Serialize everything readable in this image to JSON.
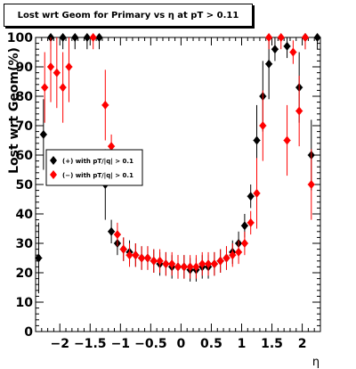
{
  "chart_data": {
    "type": "scatter",
    "title": "Lost wrt Geom for Primary vs   η at pT > 0.11",
    "xlabel": "η",
    "ylabel": "Lost wrt Geom(%)",
    "xlim": [
      -2.4,
      2.3
    ],
    "ylim": [
      0,
      100
    ],
    "xticks": [
      -2,
      -1.5,
      -1,
      -0.5,
      0,
      0.5,
      1,
      1.5,
      2
    ],
    "xtick_labels": [
      "−2",
      "−1.5",
      "−1",
      "−0.5",
      "0",
      "0.5",
      "1",
      "1.5",
      "2"
    ],
    "yticks": [
      0,
      10,
      20,
      30,
      40,
      50,
      60,
      70,
      80,
      90,
      100
    ],
    "legend_position": "left-middle",
    "series": [
      {
        "name": "(+) with pT/|q| > 0.1",
        "color": "#000000",
        "x": [
          -2.35,
          -2.27,
          -2.15,
          -1.95,
          -1.75,
          -1.55,
          -1.35,
          -1.25,
          -1.15,
          -1.05,
          -0.95,
          -0.85,
          -0.75,
          -0.65,
          -0.55,
          -0.45,
          -0.35,
          -0.25,
          -0.15,
          -0.05,
          0.05,
          0.15,
          0.25,
          0.35,
          0.45,
          0.55,
          0.65,
          0.75,
          0.85,
          0.95,
          1.05,
          1.15,
          1.25,
          1.35,
          1.45,
          1.55,
          1.75,
          1.95,
          2.05,
          2.15,
          2.25
        ],
        "y": [
          25,
          67,
          100,
          100,
          100,
          100,
          100,
          50,
          34,
          30,
          28,
          27,
          26,
          25,
          25,
          24,
          23,
          23,
          22,
          22,
          22,
          21,
          21,
          22,
          22,
          23,
          24,
          25,
          27,
          30,
          36,
          46,
          65,
          80,
          91,
          96,
          97,
          83,
          100,
          60,
          100
        ]
      },
      {
        "name": "(−) with pT/|q| > 0.1",
        "color": "#ff0000",
        "x": [
          -2.25,
          -2.15,
          -2.05,
          -1.95,
          -1.85,
          -1.45,
          -1.25,
          -1.15,
          -1.05,
          -0.95,
          -0.85,
          -0.75,
          -0.65,
          -0.55,
          -0.45,
          -0.35,
          -0.25,
          -0.15,
          -0.05,
          0.05,
          0.15,
          0.25,
          0.35,
          0.45,
          0.55,
          0.65,
          0.75,
          0.85,
          0.95,
          1.05,
          1.15,
          1.25,
          1.35,
          1.45,
          1.65,
          1.75,
          1.85,
          1.95,
          2.05,
          2.15
        ],
        "y": [
          83,
          90,
          88,
          83,
          90,
          100,
          77,
          63,
          33,
          28,
          26,
          26,
          25,
          25,
          24,
          24,
          23,
          23,
          22,
          22,
          22,
          22,
          23,
          23,
          23,
          24,
          25,
          26,
          27,
          30,
          37,
          47,
          70,
          100,
          100,
          65,
          95,
          75,
          100,
          50
        ]
      }
    ]
  }
}
